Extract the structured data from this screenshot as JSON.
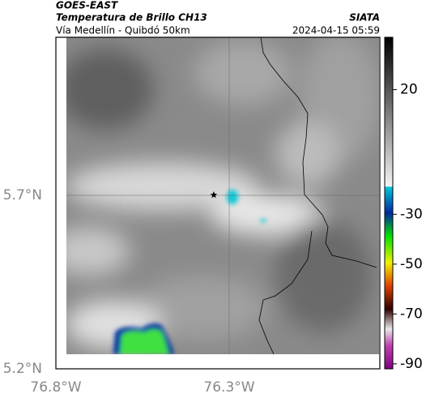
{
  "header": {
    "satellite": "GOES-EAST",
    "product": "Temperatura de Brillo CH13",
    "source": "SIATA",
    "route": "Vía Medellín - Quibdó 50km",
    "timestamp": "2024-04-15 05:59"
  },
  "map": {
    "lat_labels": [
      "5.7°N",
      "5.2°N"
    ],
    "lon_labels": [
      "76.8°W",
      "76.3°W"
    ]
  },
  "colorbar": {
    "ylim": [
      -92,
      41
    ],
    "yticks": [
      20,
      -30,
      -50,
      -70,
      -90
    ]
  }
}
